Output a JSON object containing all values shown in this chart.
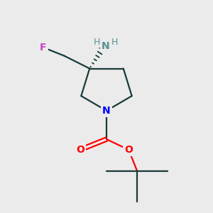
{
  "bg_color": "#ebebeb",
  "atom_colors": {
    "N_ring": "#0000ff",
    "N_amine": "#5a9090",
    "O": "#ff0000",
    "F": "#cc44cc",
    "C": "#1a3a3a",
    "H": "#5a9090"
  },
  "bond_color": "#1a3a3a",
  "bond_width": 1.6
}
